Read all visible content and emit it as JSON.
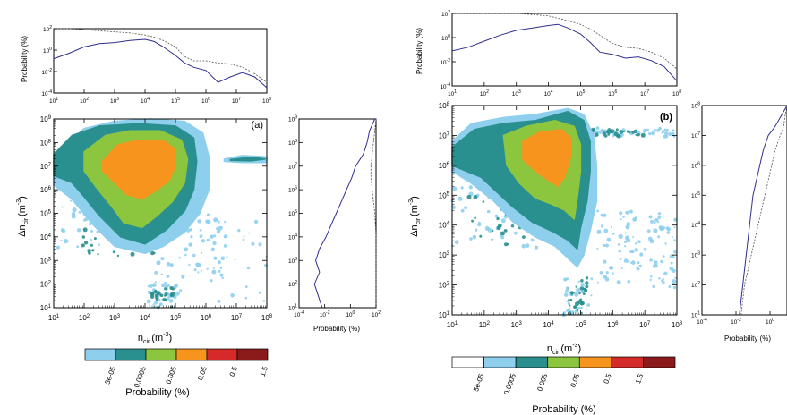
{
  "colors": {
    "level_1": "#8ecfee",
    "level_2": "#2a8f8f",
    "level_3": "#8cc63f",
    "level_4": "#f7941d",
    "level_5": "#d42a2a",
    "level_6": "#8b1a1a",
    "line_solid": "#2e2e8f",
    "line_dashed": "#555555"
  },
  "chart_data": [
    {
      "type": "heatmap",
      "panel_label": "(a)",
      "xlabel": "n",
      "xlabel_sub": "cir",
      "xlabel_unit": "(m",
      "xlabel_exp": "-3",
      "ylabel": "Δn",
      "ylabel_sub": "cir",
      "ylabel_unit": "(m",
      "ylabel_exp": "-3",
      "xscale": "log",
      "yscale": "log",
      "xlim": [
        10,
        100000000
      ],
      "ylim": [
        10,
        1000000000
      ],
      "tick_exponents_x": [
        "1",
        "2",
        "3",
        "4",
        "5",
        "6",
        "7",
        "8"
      ],
      "tick_exponents_y": [
        "1",
        "2",
        "3",
        "4",
        "5",
        "6",
        "7",
        "8",
        "9"
      ],
      "levels": [
        "5e-05",
        "0.0005",
        "0.005",
        "0.05",
        "0.5",
        "1.5"
      ],
      "top_marginal": {
        "ylabel": "Probability (%)",
        "yscale": "log",
        "ylim": [
          0.0001,
          100
        ],
        "tick_exponents_y": [
          "-4",
          "-2",
          "0",
          "2"
        ],
        "x_log": [
          1,
          1.5,
          2,
          2.5,
          3,
          3.5,
          4,
          4.3,
          4.6,
          5,
          5.3,
          5.6,
          6,
          6.4,
          6.8,
          7.2,
          7.6,
          8
        ],
        "solid_log": [
          -0.8,
          -0.3,
          0.3,
          0.6,
          0.7,
          0.9,
          1,
          0.8,
          0.3,
          -0.5,
          -1.2,
          -1.6,
          -1.9,
          -3,
          -2.5,
          -2.1,
          -2.5,
          -3.5
        ],
        "dashed_log": [
          2,
          2,
          1.9,
          1.8,
          1.7,
          1.6,
          1.4,
          1.2,
          0.9,
          0.3,
          -0.6,
          -1,
          -1,
          -1.2,
          -1.3,
          -1.6,
          -2.2,
          -3
        ]
      },
      "right_marginal": {
        "xlabel": "Probability (%)",
        "xscale": "log",
        "xlim": [
          0.0001,
          100
        ],
        "tick_exponents_x": [
          "-4",
          "-2",
          "0",
          "2"
        ],
        "y_log": [
          9,
          8.5,
          8,
          7.5,
          7,
          6.5,
          6,
          5.5,
          5,
          4.5,
          4,
          3.5,
          3,
          2.5,
          2,
          1.5,
          1
        ],
        "solid_log": [
          1.9,
          1.5,
          1.3,
          1,
          0.4,
          0.1,
          -0.3,
          -0.7,
          -1.1,
          -1.5,
          -1.9,
          -2.4,
          -2.7,
          -2.4,
          -2.8,
          -2.5,
          -2.2
        ],
        "dashed_log": [
          2,
          1.9,
          1.8,
          1.7,
          1.6,
          1.6,
          1.7,
          1.8,
          1.9,
          1.95,
          2,
          2,
          2,
          2,
          2,
          2,
          2
        ]
      }
    },
    {
      "type": "heatmap",
      "panel_label": "(b)",
      "xlabel": "n",
      "xlabel_sub": "cir",
      "xlabel_unit": "(m",
      "xlabel_exp": "-3",
      "ylabel": "Δn",
      "ylabel_sub": "cir",
      "ylabel_unit": "(m",
      "ylabel_exp": "-3",
      "xscale": "log",
      "yscale": "log",
      "xlim": [
        10,
        100000000
      ],
      "ylim": [
        10,
        100000000
      ],
      "tick_exponents_x": [
        "1",
        "2",
        "3",
        "4",
        "5",
        "6",
        "7",
        "8"
      ],
      "tick_exponents_y": [
        "1",
        "2",
        "3",
        "4",
        "5",
        "6",
        "7",
        "8"
      ],
      "levels": [
        "5e-05",
        "0.0005",
        "0.005",
        "0.05",
        "0.5",
        "1.5"
      ],
      "top_marginal": {
        "ylabel": "Probability (%)",
        "yscale": "log",
        "ylim": [
          0.0001,
          100
        ],
        "tick_exponents_y": [
          "-4",
          "-2",
          "0",
          "2"
        ],
        "x_log": [
          1,
          1.5,
          2,
          2.5,
          3,
          3.5,
          4,
          4.3,
          4.6,
          5,
          5.3,
          5.6,
          6,
          6.4,
          6.8,
          7.2,
          7.6,
          8
        ],
        "solid_log": [
          -1.1,
          -0.8,
          -0.3,
          0.2,
          0.6,
          0.8,
          1,
          1.1,
          0.8,
          0.3,
          -0.4,
          -1.2,
          -1.4,
          -1.7,
          -1.6,
          -1.9,
          -2.4,
          -3.6
        ],
        "dashed_log": [
          2,
          2,
          2,
          2,
          2,
          1.9,
          1.8,
          1.6,
          1.4,
          1.1,
          0.7,
          0.2,
          -0.5,
          -0.8,
          -0.9,
          -1.2,
          -1.7,
          -2.6
        ]
      },
      "right_marginal": {
        "xlabel": "Probability (%)",
        "xscale": "log",
        "xlim": [
          0.0001,
          10
        ],
        "tick_exponents_x": [
          "-4",
          "-2",
          "0"
        ],
        "y_log": [
          8,
          7.7,
          7.3,
          7,
          6.5,
          6,
          5.5,
          5,
          4.5,
          4,
          3.5,
          3,
          2.5,
          2,
          1.5,
          1
        ],
        "solid_log": [
          1,
          0.7,
          0.3,
          -0.1,
          -0.4,
          -0.6,
          -0.8,
          -1,
          -1.1,
          -1.2,
          -1.3,
          -1.4,
          -1.5,
          -1.6,
          -1.7,
          -1.8
        ],
        "dashed_log": [
          1,
          0.9,
          0.8,
          0.6,
          0.3,
          0.1,
          -0.1,
          -0.3,
          -0.5,
          -0.7,
          -0.9,
          -1.1,
          -1.3,
          -1.5,
          -1.6,
          -1.7
        ]
      }
    }
  ],
  "colorbars": [
    {
      "xlabel": "Probability (%)",
      "labels": [
        "5e-05",
        "0.0005",
        "0.005",
        "0.05",
        "0.5",
        "1.5"
      ],
      "has_white_box": false
    },
    {
      "xlabel": "Probability (%)",
      "labels": [
        "5e-05",
        "0.0005",
        "0.005",
        "0.05",
        "0.5",
        "1.5"
      ],
      "has_white_box": true
    }
  ]
}
